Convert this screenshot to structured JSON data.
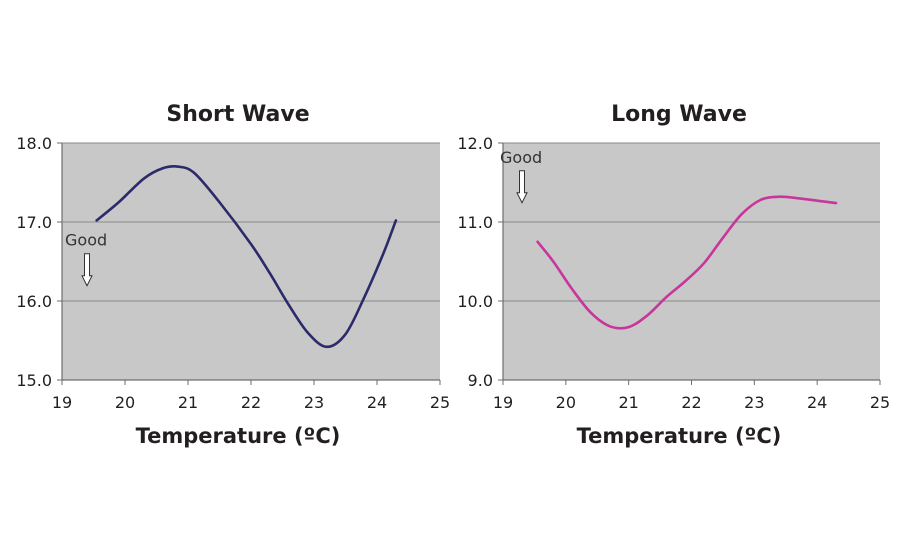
{
  "chart_data": [
    {
      "type": "line",
      "title": "Short Wave",
      "xlabel": "Temperature (ºC)",
      "ylabel": "",
      "xlim": [
        19,
        25
      ],
      "ylim": [
        15.0,
        18.0
      ],
      "xticks": [
        "19",
        "20",
        "21",
        "22",
        "23",
        "24",
        "25"
      ],
      "yticks": [
        "15.0",
        "16.0",
        "17.0",
        "18.0"
      ],
      "grid": true,
      "color": "#2b2a6b",
      "series": [
        {
          "name": "Short Wave",
          "x": [
            19.55,
            19.9,
            20.3,
            20.6,
            20.85,
            21.1,
            21.5,
            22.0,
            22.3,
            22.6,
            22.9,
            23.2,
            23.5,
            23.8,
            24.1,
            24.3
          ],
          "y": [
            17.02,
            17.25,
            17.55,
            17.68,
            17.7,
            17.62,
            17.25,
            16.72,
            16.35,
            15.95,
            15.6,
            15.42,
            15.58,
            16.05,
            16.6,
            17.02
          ]
        }
      ],
      "annotation": {
        "text": "Good",
        "x": 19.4,
        "y": 16.7,
        "arrow": "down"
      }
    },
    {
      "type": "line",
      "title": "Long Wave",
      "xlabel": "Temperature (ºC)",
      "ylabel": "",
      "xlim": [
        19,
        25
      ],
      "ylim": [
        9.0,
        12.0
      ],
      "xticks": [
        "19",
        "20",
        "21",
        "22",
        "23",
        "24",
        "25"
      ],
      "yticks": [
        "9.0",
        "10.0",
        "11.0",
        "12.0"
      ],
      "grid": true,
      "color": "#c8359b",
      "series": [
        {
          "name": "Long Wave",
          "x": [
            19.55,
            19.8,
            20.1,
            20.4,
            20.7,
            21.0,
            21.3,
            21.6,
            21.9,
            22.2,
            22.5,
            22.8,
            23.1,
            23.4,
            23.7,
            24.0,
            24.3
          ],
          "y": [
            10.75,
            10.5,
            10.15,
            9.85,
            9.68,
            9.67,
            9.82,
            10.05,
            10.25,
            10.48,
            10.8,
            11.1,
            11.28,
            11.32,
            11.3,
            11.27,
            11.24
          ]
        }
      ],
      "annotation": {
        "text": "Good",
        "x": 19.35,
        "y": 11.75,
        "arrow": "down"
      }
    }
  ]
}
